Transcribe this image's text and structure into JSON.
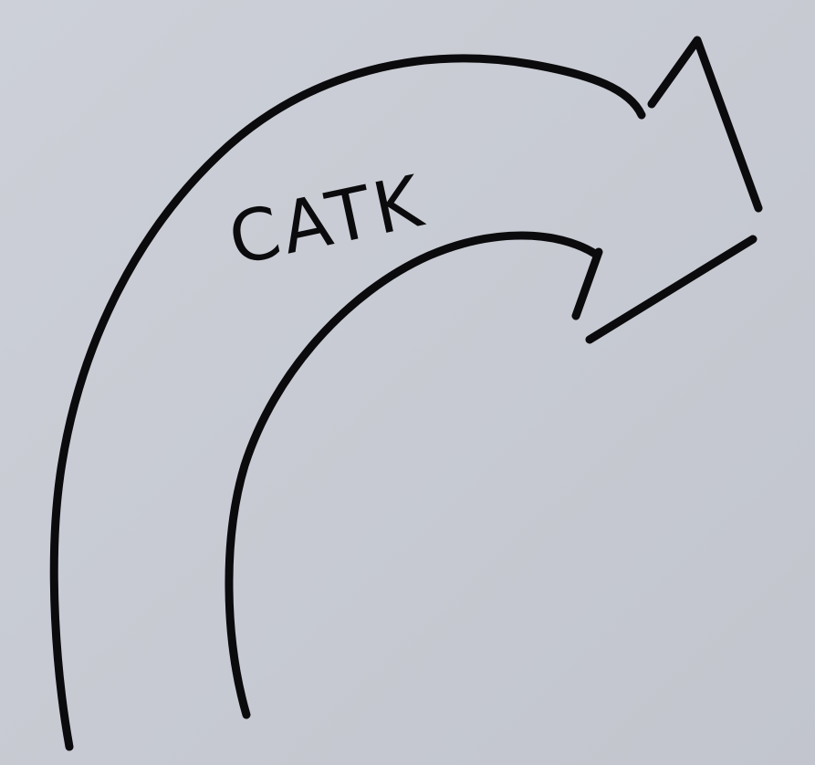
{
  "label": "CATK"
}
